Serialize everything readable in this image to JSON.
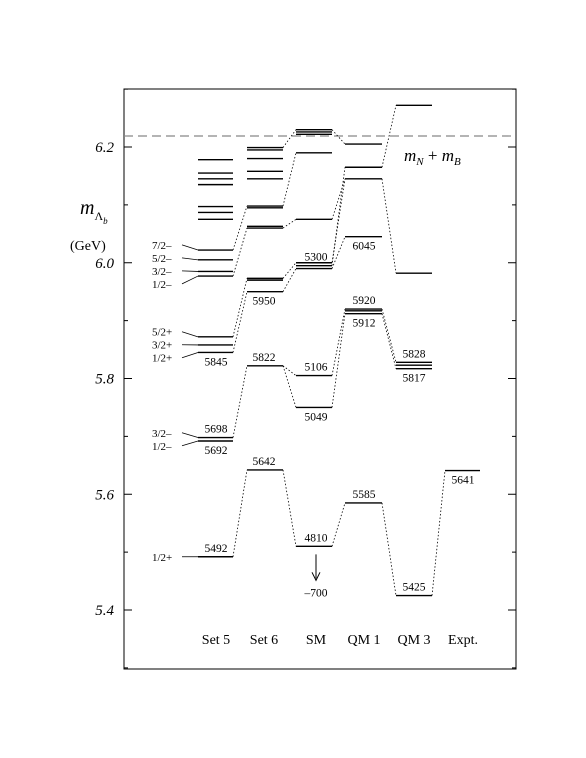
{
  "chart_data": {
    "type": "level-diagram",
    "ylabel_symbol": "m",
    "ylabel_sub": "Λ",
    "ylabel_subsub": "b",
    "ylabel_unit": "(GeV)",
    "ylim": [
      5.3,
      6.3
    ],
    "yticks": [
      {
        "value": 5.4,
        "label": "5.4"
      },
      {
        "value": 5.6,
        "label": "5.6"
      },
      {
        "value": 5.8,
        "label": "5.8"
      },
      {
        "value": 6.0,
        "label": "6.0"
      },
      {
        "value": 6.2,
        "label": "6.2"
      }
    ],
    "threshold": {
      "value": 6.219,
      "label_m1": "m",
      "label_sub1": "N",
      "label_plus": " + ",
      "label_m2": "m",
      "label_sub2": "B"
    },
    "columns": [
      {
        "id": "set5",
        "label": "Set 5"
      },
      {
        "id": "set6",
        "label": "Set 6"
      },
      {
        "id": "sm",
        "label": "SM"
      },
      {
        "id": "qm1",
        "label": "QM 1"
      },
      {
        "id": "qm3",
        "label": "QM 3"
      },
      {
        "id": "expt",
        "label": "Expt."
      }
    ],
    "levels": {
      "set5": [
        5.492,
        5.692,
        5.698,
        5.845,
        5.858,
        5.872,
        5.977,
        5.985,
        6.005,
        6.022,
        6.075,
        6.087,
        6.097,
        6.135,
        6.145,
        6.155,
        6.178
      ],
      "set6": [
        5.642,
        5.822,
        5.95,
        5.97,
        5.973,
        6.06,
        6.063,
        6.095,
        6.098,
        6.145,
        6.158,
        6.18,
        6.195,
        6.199
      ],
      "sm": [
        5.51,
        5.75,
        5.805,
        5.99,
        5.995,
        6.0,
        6.075,
        6.19,
        6.222,
        6.226,
        6.23
      ],
      "qm1": [
        5.585,
        5.912,
        5.917,
        5.92,
        6.045,
        6.145,
        6.165,
        6.205
      ],
      "qm3": [
        5.425,
        5.817,
        5.823,
        5.828,
        5.982,
        6.272
      ],
      "expt": [
        5.641
      ]
    },
    "series_labels": {
      "set5": [
        {
          "text": "1/2+",
          "level": 5.492
        },
        {
          "text": "1/2–",
          "level": 5.692
        },
        {
          "text": "3/2–",
          "level": 5.698
        },
        {
          "text": "1/2+",
          "level": 5.845
        },
        {
          "text": "3/2+",
          "level": 5.858
        },
        {
          "text": "5/2+",
          "level": 5.872
        },
        {
          "text": "1/2–",
          "level": 5.977
        },
        {
          "text": "3/2–",
          "level": 5.985
        },
        {
          "text": "5/2–",
          "level": 6.005
        },
        {
          "text": "7/2–",
          "level": 6.022
        }
      ]
    },
    "value_labels": [
      {
        "col": "set5",
        "text": "5492",
        "level": 5.492,
        "pos": "above"
      },
      {
        "col": "set5",
        "text": "5698",
        "level": 5.698,
        "pos": "above"
      },
      {
        "col": "set5",
        "text": "5692",
        "level": 5.692,
        "pos": "below"
      },
      {
        "col": "set5",
        "text": "5845",
        "level": 5.845,
        "pos": "below"
      },
      {
        "col": "set6",
        "text": "5642",
        "level": 5.642,
        "pos": "above"
      },
      {
        "col": "set6",
        "text": "5822",
        "level": 5.822,
        "pos": "above"
      },
      {
        "col": "set6",
        "text": "5950",
        "level": 5.95,
        "pos": "below"
      },
      {
        "col": "sm",
        "text": "4810",
        "level": 5.51,
        "pos": "above"
      },
      {
        "col": "sm",
        "text": "5049",
        "level": 5.75,
        "pos": "below"
      },
      {
        "col": "sm",
        "text": "5106",
        "level": 5.805,
        "pos": "above"
      },
      {
        "col": "sm",
        "text": "5300",
        "level": 5.995,
        "pos": "above"
      },
      {
        "col": "qm1",
        "text": "5585",
        "level": 5.585,
        "pos": "above"
      },
      {
        "col": "qm1",
        "text": "5912",
        "level": 5.912,
        "pos": "below"
      },
      {
        "col": "qm1",
        "text": "5920",
        "level": 5.92,
        "pos": "above"
      },
      {
        "col": "qm1",
        "text": "6045",
        "level": 6.045,
        "pos": "below"
      },
      {
        "col": "qm3",
        "text": "5425",
        "level": 5.425,
        "pos": "above"
      },
      {
        "col": "qm3",
        "text": "5817",
        "level": 5.817,
        "pos": "below"
      },
      {
        "col": "qm3",
        "text": "5828",
        "level": 5.828,
        "pos": "above"
      },
      {
        "col": "expt",
        "text": "5641",
        "level": 5.641,
        "pos": "below"
      }
    ],
    "sm_offscale": {
      "text": "–700"
    },
    "connections": [
      [
        "set5",
        5.492,
        "set6",
        5.642
      ],
      [
        "set6",
        5.642,
        "sm",
        5.51
      ],
      [
        "sm",
        5.51,
        "qm1",
        5.585
      ],
      [
        "qm1",
        5.585,
        "qm3",
        5.425
      ],
      [
        "qm3",
        5.425,
        "expt",
        5.641
      ],
      [
        "set5",
        5.698,
        "set6",
        5.822
      ],
      [
        "set6",
        5.822,
        "sm",
        5.75
      ],
      [
        "set6",
        5.822,
        "sm",
        5.805
      ],
      [
        "sm",
        5.75,
        "qm1",
        5.912
      ],
      [
        "sm",
        5.805,
        "qm1",
        5.92
      ],
      [
        "qm1",
        5.912,
        "qm3",
        5.817
      ],
      [
        "qm1",
        5.92,
        "qm3",
        5.828
      ],
      [
        "set5",
        5.845,
        "set6",
        5.95
      ],
      [
        "set5",
        5.872,
        "set6",
        5.973
      ],
      [
        "set6",
        5.95,
        "sm",
        5.99
      ],
      [
        "set6",
        5.973,
        "sm",
        6.0
      ],
      [
        "sm",
        5.99,
        "qm1",
        6.045
      ],
      [
        "sm",
        6.0,
        "qm1",
        6.145
      ],
      [
        "sm",
        5.995,
        "qm1",
        6.165
      ],
      [
        "qm1",
        6.145,
        "qm3",
        5.982
      ],
      [
        "qm1",
        6.165,
        "qm3",
        6.272
      ],
      [
        "set5",
        5.977,
        "set6",
        6.06
      ],
      [
        "set5",
        6.022,
        "set6",
        6.098
      ],
      [
        "set6",
        6.06,
        "sm",
        6.075
      ],
      [
        "set6",
        6.098,
        "sm",
        6.19
      ],
      [
        "set6",
        6.199,
        "sm",
        6.23
      ],
      [
        "sm",
        6.075,
        "qm1",
        6.145
      ],
      [
        "sm",
        6.23,
        "qm1",
        6.205
      ]
    ]
  }
}
